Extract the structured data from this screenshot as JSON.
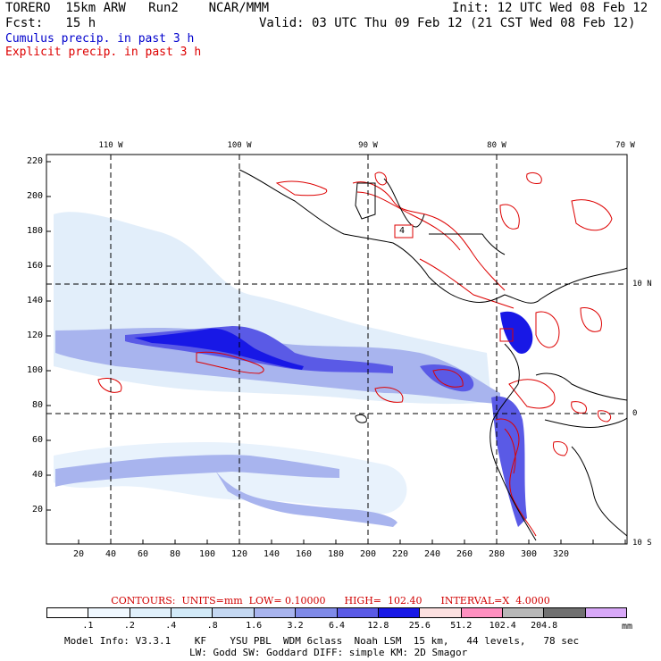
{
  "header": {
    "model": "TORERO  15km ARW   Run2    NCAR/MMM",
    "init": "Init: 12 UTC Wed 08 Feb 12",
    "fcst": "Fcst:   15 h",
    "valid": "Valid: 03 UTC Thu 09 Feb 12 (21 CST Wed 08 Feb 12)",
    "cumulus_label": "Cumulus precip. in past 3 h",
    "explicit_label": "Explicit precip. in past 3 h"
  },
  "colors": {
    "cumulus": "#0000cc",
    "explicit": "#dd0000",
    "contours_text": "#d00000",
    "grid": "#000000"
  },
  "axes": {
    "x_ticks": [
      "20",
      "40",
      "60",
      "80",
      "100",
      "120",
      "140",
      "160",
      "180",
      "200",
      "220",
      "240",
      "260",
      "280",
      "300",
      "320"
    ],
    "y_ticks": [
      "220",
      "200",
      "180",
      "160",
      "140",
      "120",
      "100",
      "80",
      "60",
      "40",
      "20"
    ],
    "lon_labels": [
      "110 W",
      "100 W",
      "90 W",
      "80 W",
      "70 W"
    ],
    "lat_labels": [
      "10 N",
      "0",
      "10 S"
    ],
    "box_label": "4"
  },
  "contours": {
    "text": "CONTOURS:  UNITS=mm  LOW= 0.10000      HIGH=  102.40      INTERVAL=X  4.0000"
  },
  "legend": {
    "colors": [
      "#ffffff",
      "#f0f8ff",
      "#e0f0fb",
      "#d2eaf8",
      "#c4d8f2",
      "#a8b4ee",
      "#7f8ae8",
      "#5a5ae6",
      "#1818e6",
      "#fce0e0",
      "#ff90c0",
      "#b8b8b8",
      "#707070",
      "#d8a8f8"
    ],
    "labels": [
      ".1",
      ".2",
      ".4",
      ".8",
      "1.6",
      "3.2",
      "6.4",
      "12.8",
      "25.6",
      "51.2",
      "102.4",
      "204.8"
    ],
    "units": "mm"
  },
  "footer": {
    "line1": "Model Info: V3.3.1    KF    YSU PBL  WDM 6class  Noah LSM  15 km,   44 levels,   78 sec",
    "line2": "LW: Godd SW: Goddard DIFF: simple KM: 2D Smagor"
  }
}
